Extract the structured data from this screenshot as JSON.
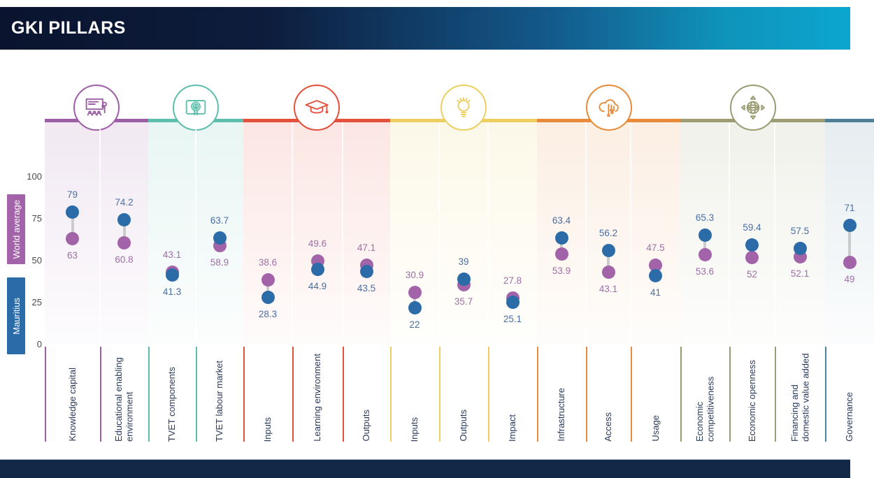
{
  "header": {
    "title": "GKI PILLARS"
  },
  "legend": {
    "world_average": {
      "label": "World average",
      "color": "#a263a8"
    },
    "mauritius": {
      "label": "Mauritius",
      "color": "#2b6ba8"
    }
  },
  "y_axis": {
    "ticks": [
      100,
      75,
      50,
      25,
      0
    ]
  },
  "chart_data": {
    "type": "scatter",
    "variant": "dumbbell-dot-plot",
    "title": "GKI PILLARS",
    "series_names": [
      "World average",
      "Mauritius"
    ],
    "series_colors": {
      "world_average": "#a263a8",
      "mauritius": "#2b6ba8"
    },
    "value_label_colors": {
      "world_average": "#9e6fa6",
      "mauritius": "#4a6fa5"
    },
    "ylim": [
      0,
      100
    ],
    "legend_position": "left",
    "grid": "subtle",
    "pillars": [
      {
        "icon": "classroom-presentation-icon",
        "color": "#9c5fa5",
        "categories": [
          {
            "label": "Knowledge capital",
            "world_average": 63,
            "mauritius": 79
          },
          {
            "label": "Educational enabling environment",
            "world_average": 60.8,
            "mauritius": 74.2
          }
        ]
      },
      {
        "icon": "certificate-icon",
        "color": "#5fbfae",
        "categories": [
          {
            "label": "TVET components",
            "world_average": 43.1,
            "mauritius": 41.3
          },
          {
            "label": "TVET labour market",
            "world_average": 58.9,
            "mauritius": 63.7
          }
        ]
      },
      {
        "icon": "graduation-cap-icon",
        "color": "#e4503c",
        "categories": [
          {
            "label": "Inputs",
            "world_average": 38.6,
            "mauritius": 28.3
          },
          {
            "label": "Learning environment",
            "world_average": 49.6,
            "mauritius": 44.9
          },
          {
            "label": "Outputs",
            "world_average": 47.1,
            "mauritius": 43.5
          }
        ]
      },
      {
        "icon": "lightbulb-icon",
        "color": "#eccf5f",
        "categories": [
          {
            "label": "Inputs",
            "world_average": 30.9,
            "mauritius": 22
          },
          {
            "label": "Outputs",
            "world_average": 35.7,
            "mauritius": 39
          },
          {
            "label": "Impact",
            "world_average": 27.8,
            "mauritius": 25.1
          }
        ]
      },
      {
        "icon": "brain-circuit-icon",
        "color": "#e78b3a",
        "categories": [
          {
            "label": "Infrastructure",
            "world_average": 53.9,
            "mauritius": 63.4
          },
          {
            "label": "Access",
            "world_average": 43.1,
            "mauritius": 56.2
          },
          {
            "label": "Usage",
            "world_average": 47.5,
            "mauritius": 41
          }
        ]
      },
      {
        "icon": "globe-arrows-icon",
        "color": "#9c9c73",
        "categories": [
          {
            "label": "Economic competitiveness",
            "world_average": 53.6,
            "mauritius": 65.3
          },
          {
            "label": "Economic openness",
            "world_average": 52,
            "mauritius": 59.4
          },
          {
            "label": "Financing and domestic value added",
            "world_average": 52.1,
            "mauritius": 57.5
          }
        ]
      },
      {
        "icon": null,
        "color": "#4d7f96",
        "categories": [
          {
            "label": "Governance",
            "world_average": 49,
            "mauritius": 71
          }
        ]
      }
    ]
  }
}
